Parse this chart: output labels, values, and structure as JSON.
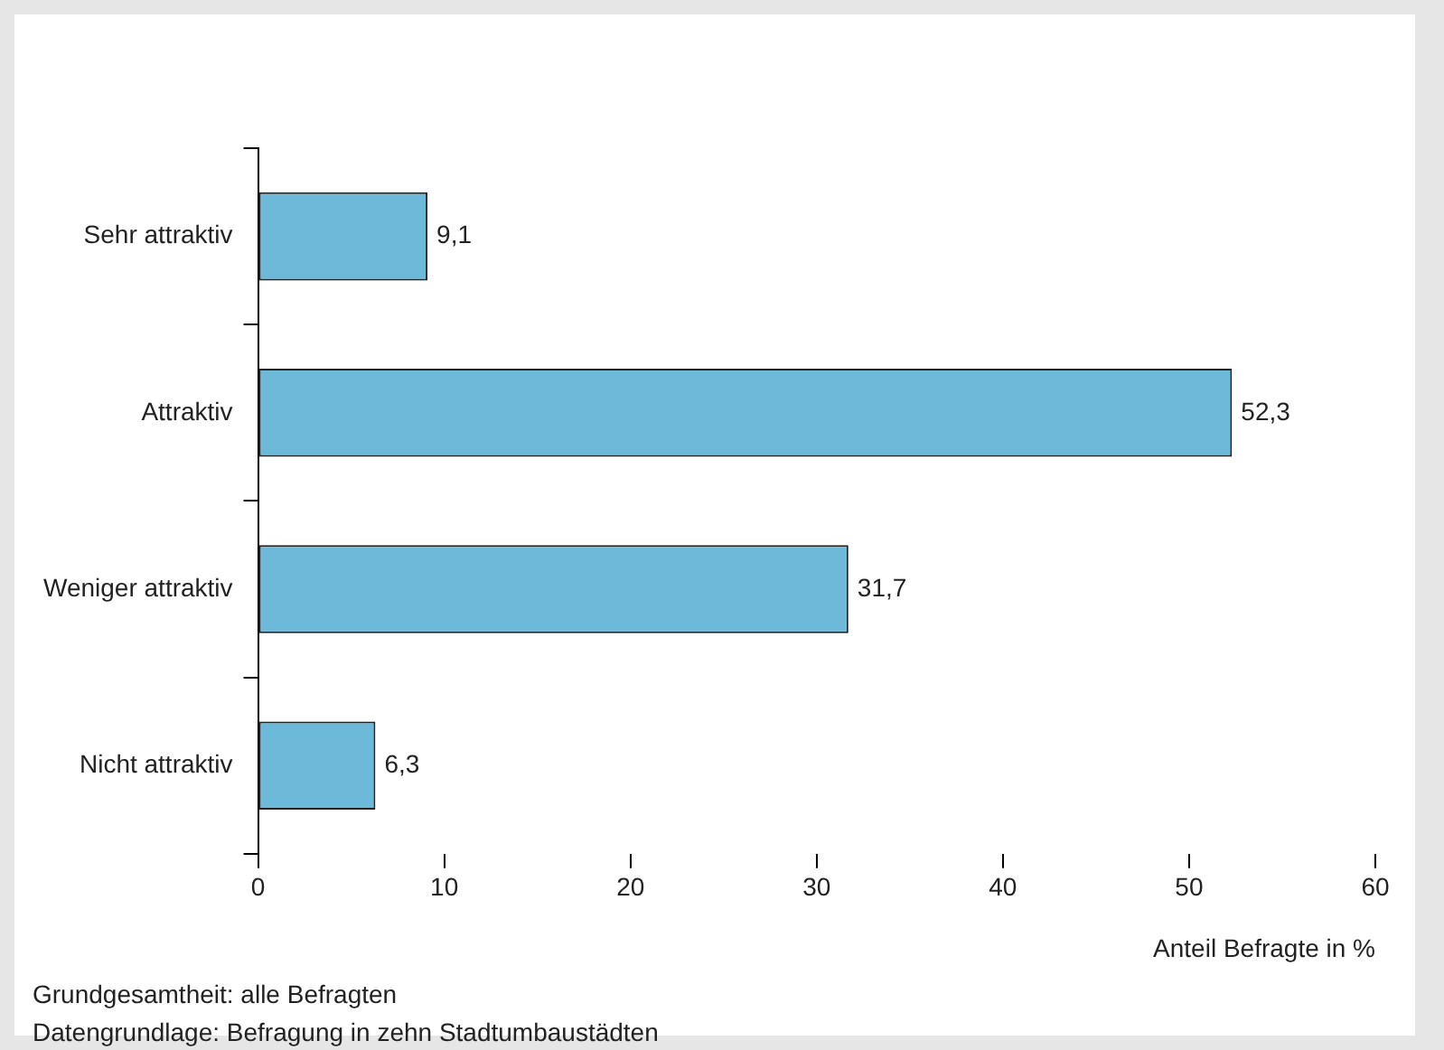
{
  "chart_data": {
    "type": "bar",
    "orientation": "horizontal",
    "categories": [
      "Sehr attraktiv",
      "Attraktiv",
      "Weniger attraktiv",
      "Nicht attraktiv"
    ],
    "values": [
      9.1,
      52.3,
      31.7,
      6.3
    ],
    "value_labels": [
      "9,1",
      "52,3",
      "31,7",
      "6,3"
    ],
    "color": "#6cb9da",
    "xlim": [
      0,
      60
    ],
    "xticks": [
      0,
      10,
      20,
      30,
      40,
      50,
      60
    ],
    "xlabel": "Anteil Befragte in %",
    "grid": false,
    "legend": false,
    "annotations": [
      "Grundgesamtheit: alle Befragten",
      "Datengrundlage: Befragung in zehn Stadtumbaustädten"
    ]
  }
}
